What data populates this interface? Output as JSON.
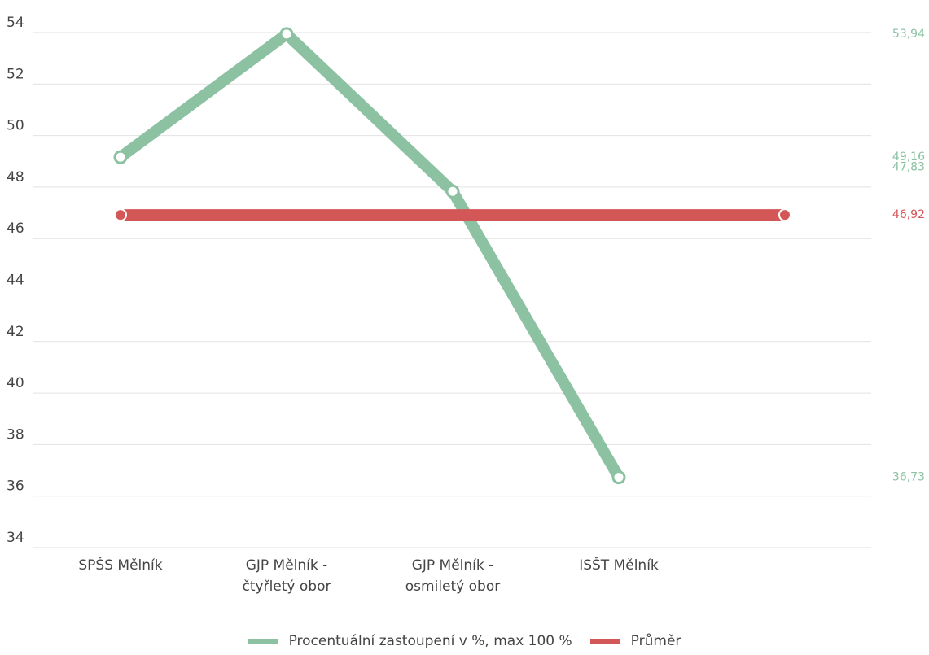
{
  "chart_data": {
    "type": "line",
    "categories": [
      "SPŠS Mělník",
      "GJP Mělník -\nčtyřletý obor",
      "GJP Mělník -\nosmiletý obor",
      "ISŠT Mělník",
      null
    ],
    "series": [
      {
        "name": "Procentuální zastoupení v %, max 100 %",
        "color": "#8cc2a2",
        "values": [
          49.16,
          53.94,
          47.83,
          36.73,
          null
        ],
        "value_labels": [
          "49,16",
          "53,94",
          "47,83",
          "36,73",
          null
        ]
      },
      {
        "name": "Průměr",
        "color": "#d45758",
        "values": [
          46.92,
          46.92,
          46.92,
          46.92,
          46.92
        ],
        "value_labels": [
          null,
          null,
          null,
          null,
          "46,92"
        ]
      }
    ],
    "ylim": [
      34,
      54
    ],
    "yticks": [
      34,
      36,
      38,
      40,
      42,
      44,
      46,
      48,
      50,
      52,
      54
    ],
    "grid": true,
    "legend": "bottom"
  }
}
